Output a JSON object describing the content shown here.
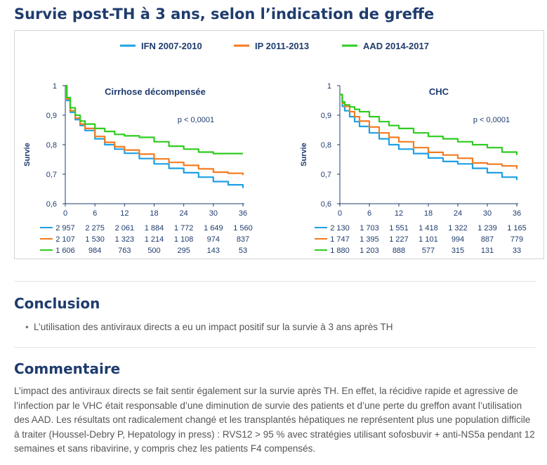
{
  "page_title": "Survie post-TH à 3 ans, selon l’indication de greffe",
  "legend": [
    {
      "label": "IFN 2007-2010",
      "color": "#1fa0e3"
    },
    {
      "label": "IP 2011-2013",
      "color": "#f47b20"
    },
    {
      "label": "AAD 2014-2017",
      "color": "#2ecc1f"
    }
  ],
  "chart_data": [
    {
      "type": "line",
      "title": "Cirrhose  décompensée",
      "annotation": "p < 0,0001",
      "xlabel": "",
      "ylabel": "Survie",
      "xlim": [
        0,
        36
      ],
      "ylim": [
        0.6,
        1
      ],
      "x_ticks": [
        0,
        6,
        12,
        18,
        24,
        30,
        36
      ],
      "y_ticks": [
        1,
        0.9,
        0.8,
        0.7,
        0.6
      ],
      "y_tick_labels": [
        "1",
        "0,9",
        "0,8",
        "0,7",
        "0,6"
      ],
      "series": [
        {
          "name": "IFN 2007-2010",
          "color": "#1fa0e3",
          "x": [
            0,
            0.3,
            1,
            2,
            3,
            4,
            6,
            8,
            10,
            12,
            15,
            18,
            21,
            24,
            27,
            30,
            33,
            36
          ],
          "y": [
            1,
            0.95,
            0.91,
            0.885,
            0.865,
            0.848,
            0.82,
            0.8,
            0.785,
            0.771,
            0.753,
            0.735,
            0.72,
            0.705,
            0.69,
            0.675,
            0.664,
            0.653
          ]
        },
        {
          "name": "IP 2011-2013",
          "color": "#f47b20",
          "x": [
            0,
            0.3,
            1,
            2,
            3,
            4,
            6,
            8,
            10,
            12,
            15,
            18,
            21,
            24,
            27,
            30,
            33,
            36
          ],
          "y": [
            1,
            0.955,
            0.915,
            0.89,
            0.87,
            0.855,
            0.828,
            0.808,
            0.793,
            0.782,
            0.768,
            0.752,
            0.74,
            0.73,
            0.718,
            0.707,
            0.703,
            0.697
          ]
        },
        {
          "name": "AAD 2014-2017",
          "color": "#2ecc1f",
          "x": [
            0,
            0.3,
            1,
            2,
            3,
            4,
            6,
            8,
            10,
            12,
            15,
            18,
            21,
            24,
            27,
            30,
            33,
            36
          ],
          "y": [
            1,
            0.96,
            0.925,
            0.9,
            0.88,
            0.87,
            0.855,
            0.845,
            0.835,
            0.83,
            0.825,
            0.81,
            0.795,
            0.785,
            0.775,
            0.77,
            0.77,
            0.77
          ]
        }
      ],
      "risk_table": [
        [
          "2 957",
          "2 275",
          "2 061",
          "1 884",
          "1 772",
          "1 649",
          "1 560"
        ],
        [
          "2 107",
          "1 530",
          "1 323",
          "1 214",
          "1 108",
          "974",
          "837"
        ],
        [
          "1 606",
          "984",
          "763",
          "500",
          "295",
          "143",
          "53"
        ]
      ]
    },
    {
      "type": "line",
      "title": "CHC",
      "annotation": "p < 0,0001",
      "xlabel": "",
      "ylabel": "Survie",
      "xlim": [
        0,
        36
      ],
      "ylim": [
        0.6,
        1
      ],
      "x_ticks": [
        0,
        6,
        12,
        18,
        24,
        30,
        36
      ],
      "y_ticks": [
        1,
        0.9,
        0.8,
        0.7,
        0.6
      ],
      "y_tick_labels": [
        "1",
        "0,9",
        "0,8",
        "0,7",
        "0,6"
      ],
      "series": [
        {
          "name": "IFN 2007-2010",
          "color": "#1fa0e3",
          "x": [
            0,
            0.5,
            1,
            2,
            3,
            4,
            6,
            8,
            10,
            12,
            15,
            18,
            21,
            24,
            27,
            30,
            33,
            36
          ],
          "y": [
            0.97,
            0.93,
            0.915,
            0.895,
            0.878,
            0.862,
            0.84,
            0.82,
            0.8,
            0.785,
            0.77,
            0.755,
            0.743,
            0.735,
            0.72,
            0.705,
            0.69,
            0.68
          ]
        },
        {
          "name": "IP 2011-2013",
          "color": "#f47b20",
          "x": [
            0,
            0.5,
            1,
            2,
            3,
            4,
            6,
            8,
            10,
            12,
            15,
            18,
            21,
            24,
            27,
            30,
            33,
            36
          ],
          "y": [
            0.97,
            0.94,
            0.93,
            0.912,
            0.895,
            0.88,
            0.86,
            0.84,
            0.825,
            0.81,
            0.79,
            0.774,
            0.765,
            0.754,
            0.738,
            0.734,
            0.728,
            0.718
          ]
        },
        {
          "name": "AAD 2014-2017",
          "color": "#2ecc1f",
          "x": [
            0,
            0.5,
            1,
            2,
            3,
            4,
            6,
            8,
            10,
            12,
            15,
            18,
            21,
            24,
            27,
            30,
            33,
            36
          ],
          "y": [
            0.97,
            0.945,
            0.935,
            0.928,
            0.92,
            0.912,
            0.895,
            0.878,
            0.865,
            0.855,
            0.84,
            0.828,
            0.82,
            0.81,
            0.8,
            0.79,
            0.775,
            0.765
          ]
        }
      ],
      "risk_table": [
        [
          "2 130",
          "1 703",
          "1 551",
          "1 418",
          "1 322",
          "1 239",
          "1 165"
        ],
        [
          "1 747",
          "1 395",
          "1 227",
          "1 101",
          "994",
          "887",
          "779"
        ],
        [
          "1 880",
          "1 203",
          "888",
          "577",
          "315",
          "131",
          "33"
        ]
      ]
    }
  ],
  "conclusion": {
    "title": "Conclusion",
    "bullets": [
      "L’utilisation des antiviraux directs a eu un impact positif sur la survie  à 3 ans après TH"
    ]
  },
  "commentaire": {
    "title": "Commentaire",
    "text": "L’impact des antiviraux directs se fait sentir également sur la survie après TH. En effet, la récidive rapide et agressive de l’infection par le VHC était responsable d’une diminution de survie des patients et d’une perte du greffon avant l’utilisation des AAD. Les résultats ont radicalement changé et les transplantés hépatiques ne représentent plus une population difficile à traiter (Houssel-Debry P, Hepatology in press) : RVS12 > 95 % avec stratégies utilisant sofosbuvir + anti-NS5a pendant 12 semaines et sans ribavirine, y compris chez les patients F4 compensés."
  }
}
